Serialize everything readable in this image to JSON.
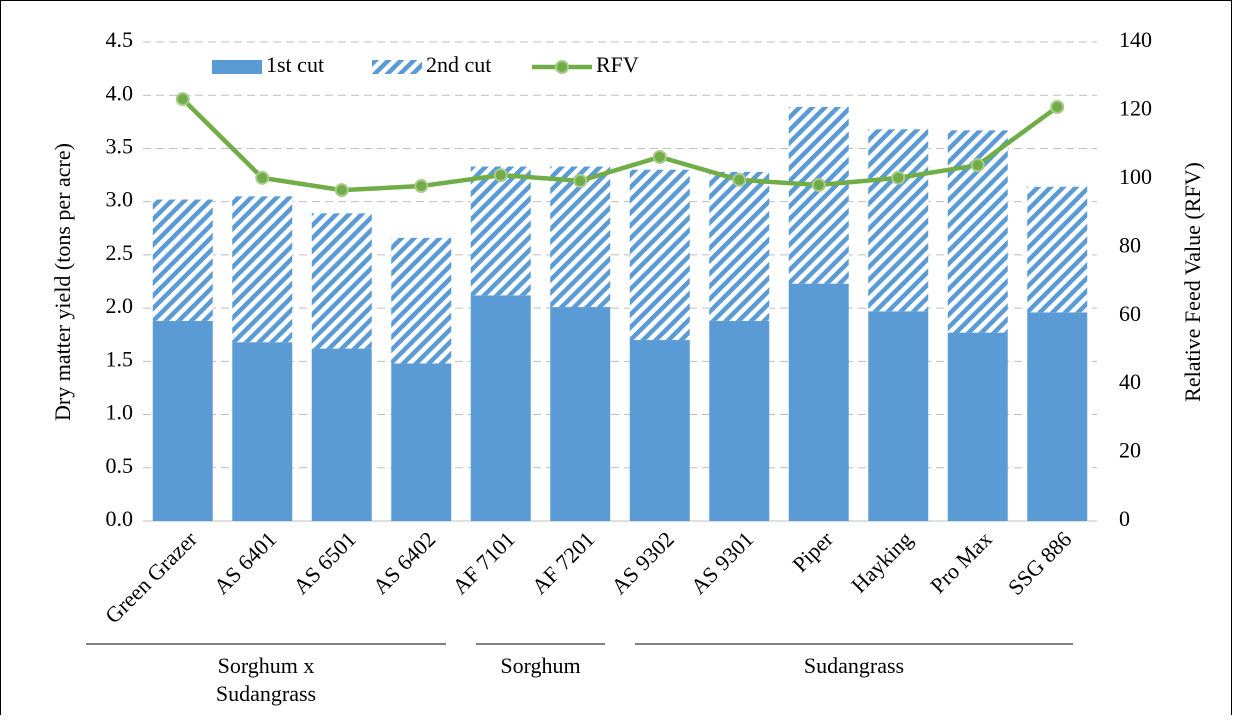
{
  "chart_data": {
    "type": "bar",
    "y_label": "Dry matter yield (tons per acre)",
    "y2_label": "Relative Feed Value (RFV)",
    "categories": [
      "Green Grazer",
      "AS 6401",
      "AS 6501",
      "AS 6402",
      "AF 7101",
      "AF 7201",
      "AS 9302",
      "AS 9301",
      "Piper",
      "Hayking",
      "Pro Max",
      "SSG 886"
    ],
    "series": [
      {
        "name": "1st cut",
        "color": "#5b9bd5",
        "pattern": "solid",
        "values": [
          1.88,
          1.68,
          1.62,
          1.48,
          2.12,
          2.01,
          1.7,
          1.88,
          2.23,
          1.97,
          1.77,
          1.96
        ]
      },
      {
        "name": "2nd cut",
        "color": "#5b9bd5",
        "pattern": "hatch",
        "values": [
          1.14,
          1.37,
          1.27,
          1.18,
          1.21,
          1.32,
          1.6,
          1.4,
          1.66,
          1.71,
          1.9,
          1.18
        ]
      },
      {
        "name": "RFV",
        "color": "#70ad47",
        "type": "line",
        "axis": "y2",
        "values": [
          123.3,
          100.3,
          96.7,
          97.9,
          101.1,
          99.4,
          106.4,
          99.7,
          98.2,
          100.3,
          104.0,
          121.0
        ]
      }
    ],
    "groups": [
      {
        "label": [
          "Sorghum x",
          "Sudangrass"
        ],
        "start": 0,
        "end": 3
      },
      {
        "label": [
          "Sorghum"
        ],
        "start": 4,
        "end": 5
      },
      {
        "label": [
          "Sudangrass"
        ],
        "start": 6,
        "end": 11
      }
    ],
    "ylim": [
      0,
      4.5
    ],
    "yticks": [
      {
        "value": 0,
        "label": "0.0"
      },
      0.5,
      {
        "value": 1,
        "label": "1.0"
      },
      1.5,
      {
        "value": 2,
        "label": "2.0"
      },
      2.5,
      {
        "value": 3,
        "label": "3.0"
      },
      3.5,
      {
        "value": 4,
        "label": "4.0"
      },
      4.5
    ],
    "y2lim": [
      0,
      140
    ],
    "y2ticks": [
      0,
      20,
      40,
      60,
      80,
      100,
      120,
      140
    ],
    "grid": true,
    "legend": "top"
  }
}
